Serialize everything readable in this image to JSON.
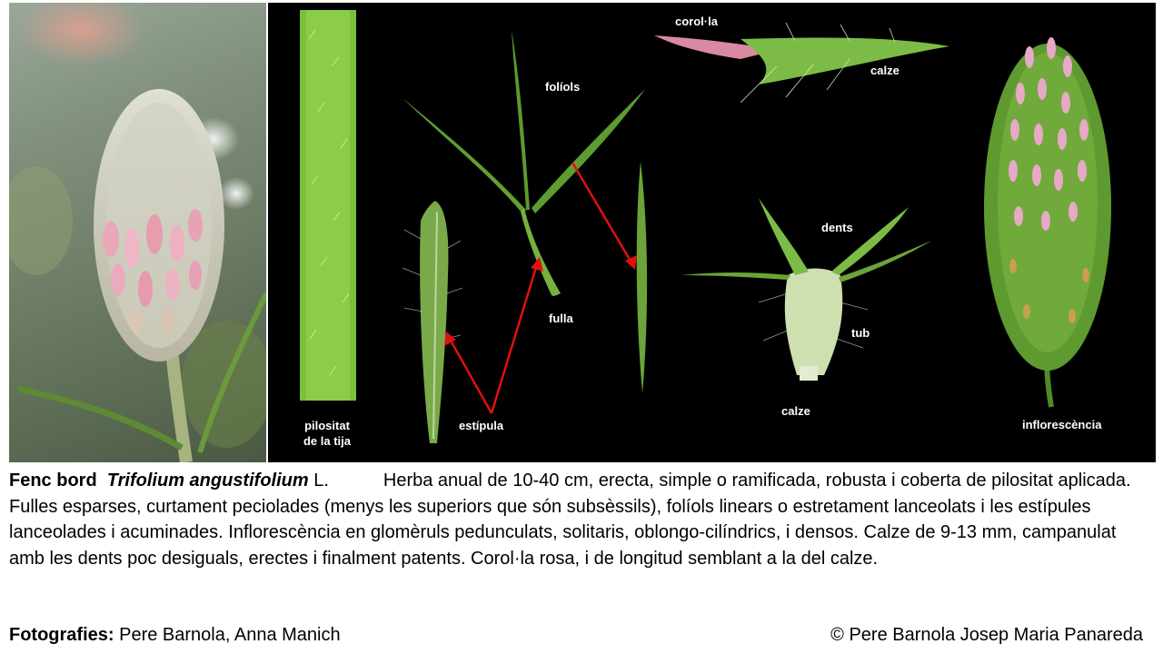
{
  "plate": {
    "labels": {
      "pilositat_line1": "pilositat",
      "pilositat_line2": "de la tija",
      "estipula": "estípula",
      "foliols": "folíols",
      "fulla": "fulla",
      "corolla": "corol·la",
      "calze_top": "calze",
      "dents": "dents",
      "tub": "tub",
      "calze_bottom": "calze",
      "inflorescencia": "inflorescència"
    },
    "arrow_color": "#e01010"
  },
  "description": {
    "common_name": "Fenc bord",
    "scientific_name": "Trifolium angustifolium",
    "author": "L.",
    "text": "Herba anual de 10-40 cm, erecta, simple o ramificada, robusta i coberta de pilositat aplicada. Fulles esparses, curtament peciolades (menys les  superiors que són subsèssils), folíols linears o estretament lanceolats i les estípules lanceolades i acuminades. Inflorescència en glomèruls pedunculats, solitaris, oblongo-cilíndrics, i densos. Calze de 9-13 mm, campanulat amb les dents poc desiguals, erectes i finalment patents. Corol·la rosa, i de longitud semblant a la del calze."
  },
  "credits": {
    "photos_label": "Fotografies:",
    "photos_names": "Pere Barnola, Anna Manich",
    "copyright": "© Pere Barnola Josep Maria Panareda"
  }
}
